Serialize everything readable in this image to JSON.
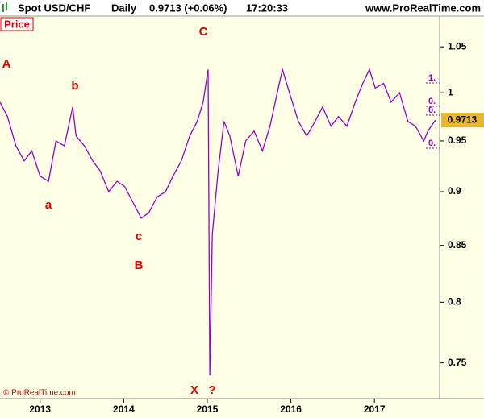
{
  "header": {
    "instrument": "Spot USD/CHF",
    "interval": "Daily",
    "quote": "0.9713 (+0.06%)",
    "time": "17:20:33",
    "site": "www.ProRealTime.com"
  },
  "chart_data": {
    "type": "line",
    "panel_label": "Price",
    "copyright": "© ProRealTime.com",
    "color": "#9900cc",
    "log_y": true,
    "x": [
      2012.52,
      2012.61,
      2012.71,
      2012.81,
      2012.9,
      2013.0,
      2013.1,
      2013.19,
      2013.29,
      2013.39,
      2013.43,
      2013.53,
      2013.63,
      2013.72,
      2013.82,
      2013.92,
      2014.01,
      2014.11,
      2014.21,
      2014.3,
      2014.4,
      2014.5,
      2014.59,
      2014.69,
      2014.79,
      2014.88,
      2014.95,
      2015.01,
      2015.03,
      2015.06,
      2015.13,
      2015.2,
      2015.27,
      2015.37,
      2015.46,
      2015.56,
      2015.66,
      2015.75,
      2015.85,
      2015.9,
      2016.0,
      2016.09,
      2016.19,
      2016.29,
      2016.38,
      2016.48,
      2016.57,
      2016.67,
      2016.77,
      2016.86,
      2016.94,
      2017.01,
      2017.11,
      2017.2,
      2017.3,
      2017.4,
      2017.49,
      2017.59,
      2017.64,
      2017.73
    ],
    "values": [
      0.99,
      0.975,
      0.945,
      0.93,
      0.94,
      0.915,
      0.91,
      0.95,
      0.945,
      0.985,
      0.955,
      0.945,
      0.93,
      0.92,
      0.9,
      0.91,
      0.905,
      0.89,
      0.875,
      0.88,
      0.895,
      0.9,
      0.915,
      0.93,
      0.955,
      0.97,
      0.99,
      1.025,
      0.74,
      0.86,
      0.92,
      0.97,
      0.955,
      0.915,
      0.95,
      0.96,
      0.94,
      0.965,
      1.005,
      1.025,
      0.995,
      0.97,
      0.955,
      0.97,
      0.985,
      0.965,
      0.975,
      0.965,
      0.99,
      1.01,
      1.025,
      1.005,
      1.01,
      0.99,
      1.0,
      0.97,
      0.965,
      0.95,
      0.96,
      0.9713
    ],
    "last_value": 0.9713,
    "last_color": "#e8b830",
    "xlim": [
      2012.52,
      2017.78
    ],
    "xticks": [
      2013,
      2014,
      2015,
      2016,
      2017
    ],
    "ylim": [
      0.722,
      1.085
    ],
    "yticks": [
      0.75,
      0.8,
      0.85,
      0.9,
      0.95,
      1,
      1.05
    ],
    "annotations": [
      "A",
      "b",
      "a",
      "c",
      "B",
      "C",
      "X",
      "?"
    ],
    "fib_labels": [
      "1.",
      "0.",
      "0.",
      "0."
    ]
  }
}
